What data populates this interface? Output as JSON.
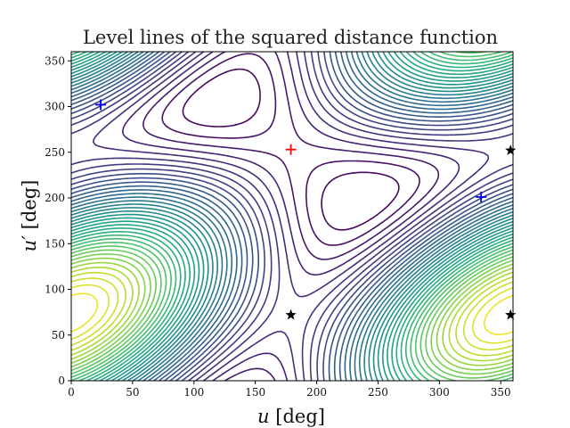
{
  "chart_data": {
    "type": "contour",
    "title": "Level lines of the squared distance function",
    "xlabel_var": "u",
    "xlabel_unit": " [deg]",
    "ylabel_var": "u′",
    "ylabel_unit": " [deg]",
    "xlim": [
      0,
      360
    ],
    "ylim": [
      0,
      360
    ],
    "xticks": [
      0,
      50,
      100,
      150,
      200,
      250,
      300,
      350
    ],
    "yticks": [
      0,
      50,
      100,
      150,
      200,
      250,
      300,
      350
    ],
    "colormap": "viridis",
    "markers": [
      {
        "kind": "plus",
        "color": "#ff0000",
        "x": 179,
        "y": 253
      },
      {
        "kind": "plus",
        "color": "#0000ff",
        "x": 24,
        "y": 302
      },
      {
        "kind": "plus",
        "color": "#0000ff",
        "x": 334,
        "y": 201
      },
      {
        "kind": "star",
        "color": "#000000",
        "x": 179,
        "y": 72
      },
      {
        "kind": "star",
        "color": "#000000",
        "x": 358,
        "y": 72
      },
      {
        "kind": "star",
        "color": "#000000",
        "x": 358,
        "y": 252
      }
    ]
  }
}
